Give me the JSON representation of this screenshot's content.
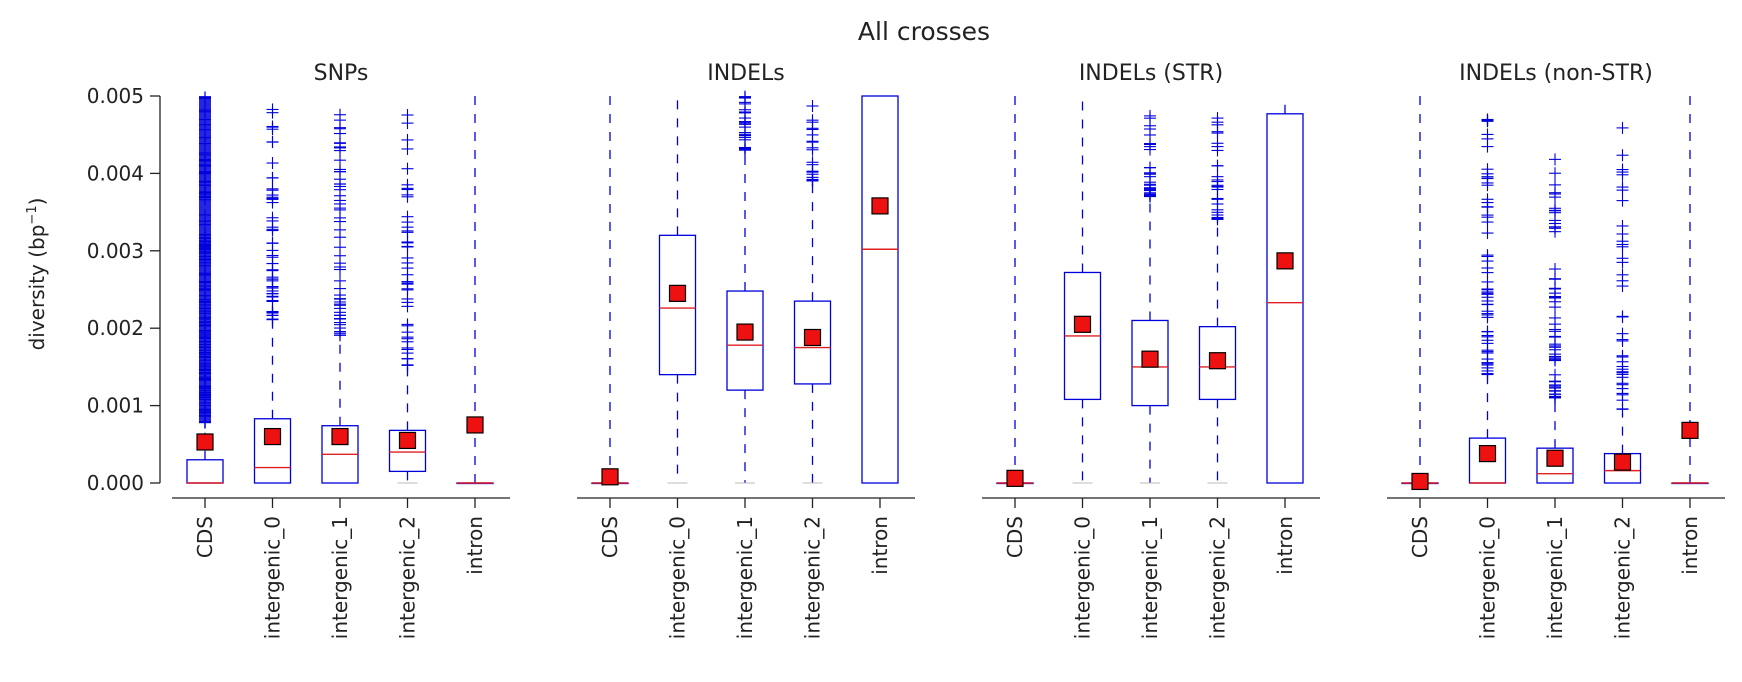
{
  "chart_data": {
    "type": "box",
    "title": "All crosses",
    "ylabel_main": "diversity (bp",
    "ylabel_sup": "−1",
    "ylabel_close": ")",
    "ylim": [
      0,
      0.005
    ],
    "yticks": [
      0,
      0.001,
      0.002,
      0.003,
      0.004,
      0.005
    ],
    "ytick_labels": [
      "0.000",
      "0.001",
      "0.002",
      "0.003",
      "0.004",
      "0.005"
    ],
    "categories": [
      "CDS",
      "intergenic_0",
      "intergenic_1",
      "intergenic_2",
      "intron"
    ],
    "colors": {
      "box": "#0000dd",
      "median": "#e02020",
      "mean_fill": "#ee1111",
      "mean_edge": "#000000",
      "axis": "#222222"
    },
    "panels": [
      {
        "title": "SNPs",
        "boxes": [
          {
            "category": "CDS",
            "q1": 0.0,
            "median": 0.0,
            "q3": 0.0003,
            "whisker_low": 0.0,
            "whisker_high": 0.00075,
            "mean": 0.00053,
            "fliers": {
              "lo": 0.00078,
              "hi": 0.005,
              "count": 160
            }
          },
          {
            "category": "intergenic_0",
            "q1": 0.0,
            "median": 0.0002,
            "q3": 0.00083,
            "whisker_low": 0.0,
            "whisker_high": 0.0021,
            "mean": 0.0006,
            "fliers": {
              "lo": 0.0021,
              "hi": 0.0049,
              "count": 55
            }
          },
          {
            "category": "intergenic_1",
            "q1": 0.0,
            "median": 0.00037,
            "q3": 0.00074,
            "whisker_low": 0.0,
            "whisker_high": 0.0018,
            "mean": 0.0006,
            "fliers": {
              "lo": 0.0019,
              "hi": 0.0048,
              "count": 55
            }
          },
          {
            "category": "intergenic_2",
            "q1": 0.00015,
            "median": 0.0004,
            "q3": 0.00068,
            "whisker_low": 0.0,
            "whisker_high": 0.0015,
            "mean": 0.00055,
            "fliers": {
              "lo": 0.0015,
              "hi": 0.0048,
              "count": 45
            }
          },
          {
            "category": "intron",
            "q1": 0.0,
            "median": 0.0,
            "q3": 0.0,
            "whisker_low": 0.0,
            "whisker_high": 0.005,
            "mean": 0.00075,
            "fliers": null
          }
        ]
      },
      {
        "title": "INDELs",
        "boxes": [
          {
            "category": "CDS",
            "q1": 0.0,
            "median": 0.0,
            "q3": 0.0,
            "whisker_low": 0.0,
            "whisker_high": 0.005,
            "mean": 8e-05,
            "fliers": null
          },
          {
            "category": "intergenic_0",
            "q1": 0.0014,
            "median": 0.00226,
            "q3": 0.0032,
            "whisker_low": 0.0,
            "whisker_high": 0.005,
            "mean": 0.00245,
            "fliers": null
          },
          {
            "category": "intergenic_1",
            "q1": 0.0012,
            "median": 0.00178,
            "q3": 0.00248,
            "whisker_low": 0.0,
            "whisker_high": 0.0043,
            "mean": 0.00195,
            "fliers": {
              "lo": 0.0043,
              "hi": 0.005,
              "count": 30
            }
          },
          {
            "category": "intergenic_2",
            "q1": 0.00128,
            "median": 0.00175,
            "q3": 0.00235,
            "whisker_low": 0.0,
            "whisker_high": 0.0039,
            "mean": 0.00188,
            "fliers": {
              "lo": 0.0039,
              "hi": 0.0049,
              "count": 22
            }
          },
          {
            "category": "intron",
            "q1": 0.0,
            "median": 0.00302,
            "q3": 0.0052,
            "whisker_low": 0.0,
            "whisker_high": 0.0052,
            "mean": 0.00358,
            "fliers": null
          }
        ]
      },
      {
        "title": "INDELs (STR)",
        "boxes": [
          {
            "category": "CDS",
            "q1": 0.0,
            "median": 0.0,
            "q3": 0.0,
            "whisker_low": 0.0,
            "whisker_high": 0.005,
            "mean": 6e-05,
            "fliers": null
          },
          {
            "category": "intergenic_0",
            "q1": 0.00108,
            "median": 0.0019,
            "q3": 0.00272,
            "whisker_low": 0.0,
            "whisker_high": 0.005,
            "mean": 0.00205,
            "fliers": null
          },
          {
            "category": "intergenic_1",
            "q1": 0.001,
            "median": 0.0015,
            "q3": 0.0021,
            "whisker_low": 0.0,
            "whisker_high": 0.0037,
            "mean": 0.0016,
            "fliers": {
              "lo": 0.0037,
              "hi": 0.0049,
              "count": 30
            }
          },
          {
            "category": "intergenic_2",
            "q1": 0.00108,
            "median": 0.0015,
            "q3": 0.00202,
            "whisker_low": 0.0,
            "whisker_high": 0.0034,
            "mean": 0.00158,
            "fliers": {
              "lo": 0.0034,
              "hi": 0.0048,
              "count": 28
            }
          },
          {
            "category": "intron",
            "q1": 0.0,
            "median": 0.00233,
            "q3": 0.00477,
            "whisker_low": 0.0,
            "whisker_high": 0.005,
            "mean": 0.00287,
            "fliers": null
          }
        ]
      },
      {
        "title": "INDELs (non-STR)",
        "boxes": [
          {
            "category": "CDS",
            "q1": 0.0,
            "median": 0.0,
            "q3": 0.0,
            "whisker_low": 0.0,
            "whisker_high": 0.005,
            "mean": 2e-05,
            "fliers": null
          },
          {
            "category": "intergenic_0",
            "q1": 0.0,
            "median": 0.0,
            "q3": 0.00058,
            "whisker_low": 0.0,
            "whisker_high": 0.0014,
            "mean": 0.00038,
            "fliers": {
              "lo": 0.0014,
              "hi": 0.0049,
              "count": 60
            }
          },
          {
            "category": "intergenic_1",
            "q1": 0.0,
            "median": 0.00012,
            "q3": 0.00045,
            "whisker_low": 0.0,
            "whisker_high": 0.0011,
            "mean": 0.00032,
            "fliers": {
              "lo": 0.0011,
              "hi": 0.0043,
              "count": 60
            }
          },
          {
            "category": "intergenic_2",
            "q1": 0.0,
            "median": 0.00016,
            "q3": 0.00038,
            "whisker_low": 0.0,
            "whisker_high": 0.0009,
            "mean": 0.00027,
            "fliers": {
              "lo": 0.00095,
              "hi": 0.0046,
              "count": 40
            }
          },
          {
            "category": "intron",
            "q1": 0.0,
            "median": 0.0,
            "q3": 0.0,
            "whisker_low": 0.0,
            "whisker_high": 0.005,
            "mean": 0.00068,
            "fliers": null
          }
        ]
      }
    ]
  }
}
